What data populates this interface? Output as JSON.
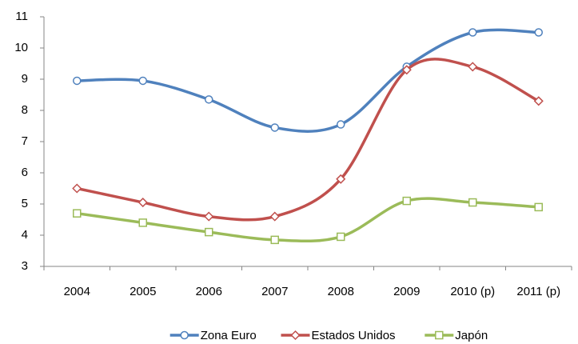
{
  "chart_data": {
    "type": "line",
    "smooth": true,
    "grid": false,
    "legend": "bottom",
    "categories": [
      "2004",
      "2005",
      "2006",
      "2007",
      "2008",
      "2009",
      "2010 (p)",
      "2011 (p)"
    ],
    "series": [
      {
        "name": "Zona Euro",
        "color": "#4f81bd",
        "marker": "circle",
        "values": [
          8.95,
          8.95,
          8.35,
          7.45,
          7.55,
          9.4,
          10.5,
          10.5
        ]
      },
      {
        "name": "Estados Unidos",
        "color": "#c0504d",
        "marker": "diamond",
        "values": [
          5.5,
          5.05,
          4.6,
          4.6,
          5.8,
          9.3,
          9.4,
          8.3
        ]
      },
      {
        "name": "Japón",
        "color": "#9bbb59",
        "marker": "square",
        "values": [
          4.7,
          4.4,
          4.1,
          3.85,
          3.95,
          5.1,
          5.05,
          4.9
        ]
      }
    ],
    "ylim": [
      3,
      11
    ],
    "yticks": [
      3,
      4,
      5,
      6,
      7,
      8,
      9,
      10,
      11
    ]
  }
}
